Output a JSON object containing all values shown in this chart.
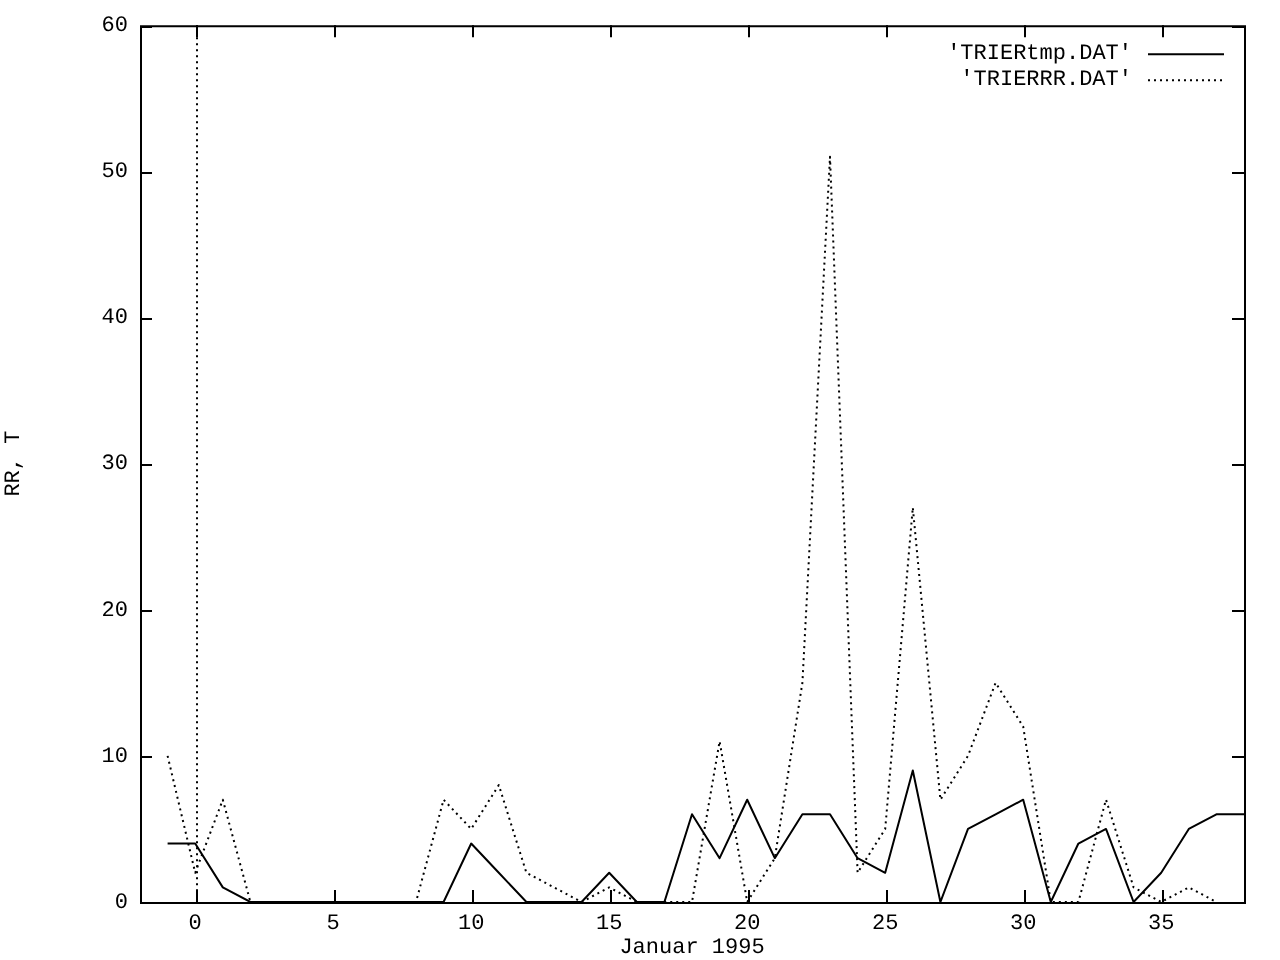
{
  "chart_data": {
    "type": "line",
    "xlabel": "Januar 1995",
    "ylabel": "RR, T",
    "x": [
      -1,
      0,
      1,
      2,
      3,
      4,
      5,
      6,
      7,
      8,
      9,
      10,
      11,
      12,
      13,
      14,
      15,
      16,
      17,
      18,
      19,
      20,
      21,
      22,
      23,
      24,
      25,
      26,
      27,
      28,
      29,
      30,
      31,
      32,
      33,
      34,
      35,
      36,
      37,
      38
    ],
    "xlim": [
      -2,
      38
    ],
    "xticks": [
      0,
      5,
      10,
      15,
      20,
      25,
      30,
      35
    ],
    "ylim": [
      0,
      60
    ],
    "yticks": [
      0,
      10,
      20,
      30,
      40,
      50,
      60
    ],
    "series": [
      {
        "name": "'TRIERtmp.DAT'",
        "color": "#000000",
        "line_style": "solid",
        "values": [
          4,
          4,
          1,
          0,
          0,
          0,
          0,
          0,
          0,
          0,
          0,
          4,
          2,
          0,
          0,
          0,
          2,
          0,
          0,
          6,
          3,
          7,
          3,
          6,
          6,
          3,
          2,
          9,
          0,
          5,
          6,
          7,
          0,
          4,
          5,
          0,
          2,
          5,
          6,
          6
        ]
      },
      {
        "name": "'TRIERRR.DAT'",
        "color": "#000000",
        "line_style": "dotted",
        "values": [
          10,
          2,
          7,
          0,
          0,
          0,
          0,
          0,
          0,
          0,
          7,
          5,
          8,
          2,
          1,
          0,
          1,
          0,
          0,
          0,
          11,
          0,
          3,
          15,
          51,
          2,
          5,
          27,
          7,
          10,
          15,
          12,
          0,
          0,
          7,
          1,
          0,
          1,
          0,
          null
        ]
      }
    ],
    "ref_lines": [
      {
        "axis": "x",
        "value": 0,
        "line_style": "dotted",
        "color": "#000000"
      }
    ],
    "grid": false,
    "legend": "top right",
    "marker": "none"
  }
}
